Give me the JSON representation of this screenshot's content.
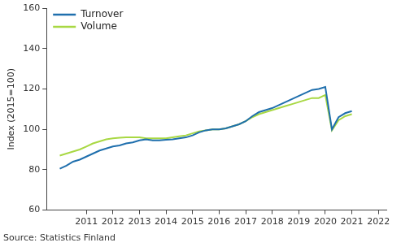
{
  "chart_data": {
    "type": "line",
    "y_label": "Index (2015=100)",
    "source": "Source: Statistics Finland",
    "x": [
      2010,
      2010.25,
      2010.5,
      2010.75,
      2011,
      2011.25,
      2011.5,
      2011.75,
      2012,
      2012.25,
      2012.5,
      2012.75,
      2013,
      2013.25,
      2013.5,
      2013.75,
      2014,
      2014.25,
      2014.5,
      2014.75,
      2015,
      2015.25,
      2015.5,
      2015.75,
      2016,
      2016.25,
      2016.5,
      2016.75,
      2017,
      2017.25,
      2017.5,
      2017.75,
      2018,
      2018.25,
      2018.5,
      2018.75,
      2019,
      2019.25,
      2019.5,
      2019.75,
      2020,
      2020.25,
      2020.5,
      2020.75,
      2021
    ],
    "series": [
      {
        "name": "Turnover",
        "color": "#1f6fad",
        "values": [
          80.5,
          82,
          84,
          85,
          86.5,
          88,
          89.5,
          90.5,
          91.5,
          92,
          93,
          93.5,
          94.5,
          95,
          94.5,
          94.5,
          94.8,
          95,
          95.5,
          96,
          97,
          98.5,
          99.5,
          100,
          100,
          100.5,
          101.5,
          102.5,
          104,
          106.5,
          108.5,
          109.5,
          110.5,
          112,
          113.5,
          115,
          116.5,
          118,
          119.5,
          120,
          121,
          100,
          106,
          108,
          109
        ]
      },
      {
        "name": "Volume",
        "color": "#a8d843",
        "values": [
          87,
          88,
          89,
          90,
          91.5,
          93,
          94,
          95,
          95.5,
          95.8,
          96,
          96,
          96,
          95.5,
          95.5,
          95.5,
          95.5,
          96,
          96.5,
          97,
          98,
          99,
          99.5,
          100,
          100,
          100.5,
          101.5,
          102.5,
          104,
          106,
          107.5,
          108.5,
          109.5,
          110.5,
          111.5,
          112.5,
          113.5,
          114.5,
          115.5,
          115.5,
          117,
          99.5,
          104.5,
          106.5,
          107.5
        ]
      }
    ],
    "xlim": [
      2009.5,
      2022.3
    ],
    "xticks": [
      2011,
      2012,
      2013,
      2014,
      2015,
      2016,
      2017,
      2018,
      2019,
      2020,
      2021,
      2022
    ],
    "ylim": [
      60,
      160
    ],
    "yticks": [
      60,
      80,
      100,
      120,
      140,
      160
    ],
    "grid": false,
    "legend": "upper left"
  }
}
